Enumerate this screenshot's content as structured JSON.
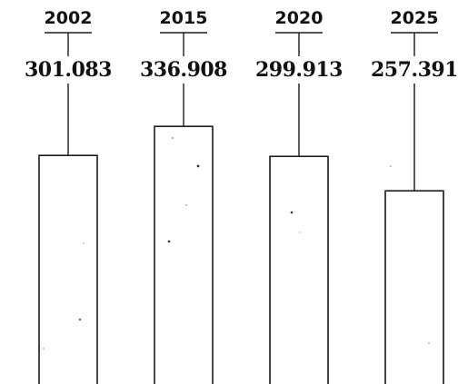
{
  "chart_data": {
    "type": "bar",
    "categories": [
      "2002",
      "2015",
      "2020",
      "2025"
    ],
    "values": [
      301.083,
      336.908,
      299.913,
      257.391
    ],
    "value_labels": [
      "301.083",
      "336.908",
      "299.913",
      "257.391"
    ],
    "title": "",
    "xlabel": "",
    "ylabel": "",
    "grid": false,
    "legend": "none",
    "bar_fill": "#ffffff",
    "bar_stroke": "#1a1a1a",
    "text_color": "#111111"
  }
}
